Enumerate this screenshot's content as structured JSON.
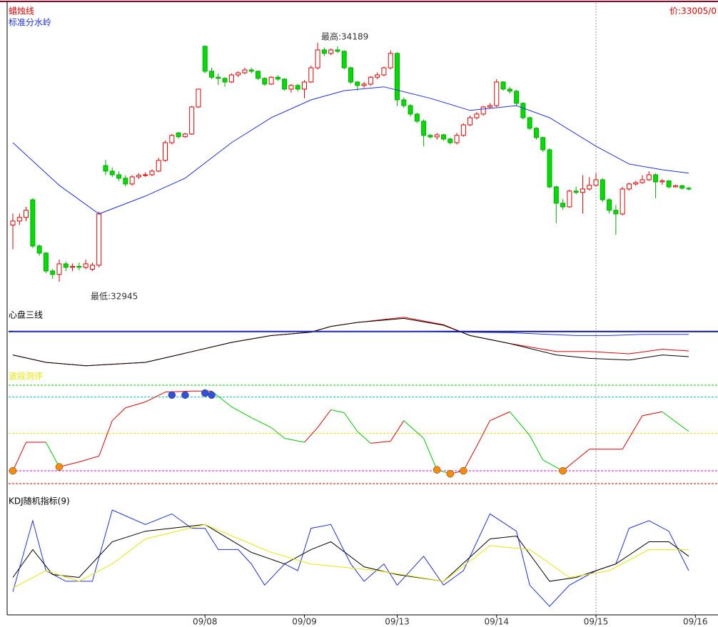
{
  "chart_data": [
    {
      "type": "candlestick",
      "title": "蜡烛线",
      "ylim": [
        32852,
        34412
      ],
      "up_color": "#e00000",
      "down_color": "#00dd00",
      "high_label": "最高:34189",
      "low_label": "最低:32945",
      "price_label": "价:33005/0",
      "cursor_x": 88,
      "candles": [
        [
          33240,
          33300,
          33115,
          33261
        ],
        [
          33261,
          33300,
          33240,
          33280
        ],
        [
          33280,
          33335,
          33260,
          33317
        ],
        [
          33372,
          33380,
          33120,
          33131
        ],
        [
          33131,
          33140,
          33080,
          33094
        ],
        [
          33094,
          33100,
          32990,
          33001
        ],
        [
          33001,
          33010,
          32960,
          32983
        ],
        [
          32983,
          33060,
          32945,
          33038
        ],
        [
          33038,
          33050,
          33000,
          33020
        ],
        [
          33020,
          33040,
          33000,
          33025
        ],
        [
          33025,
          33045,
          33005,
          33020
        ],
        [
          33020,
          33060,
          33010,
          33038
        ],
        [
          33010,
          33045,
          33000,
          33031
        ],
        [
          33031,
          33310,
          33020,
          33298
        ],
        [
          33550,
          33580,
          33500,
          33521
        ],
        [
          33521,
          33540,
          33490,
          33502
        ],
        [
          33502,
          33520,
          33470,
          33484
        ],
        [
          33484,
          33500,
          33440,
          33454
        ],
        [
          33454,
          33500,
          33445,
          33491
        ],
        [
          33491,
          33510,
          33480,
          33499
        ],
        [
          33499,
          33515,
          33490,
          33502
        ],
        [
          33502,
          33530,
          33495,
          33521
        ],
        [
          33521,
          33590,
          33515,
          33577
        ],
        [
          33577,
          33680,
          33570,
          33669
        ],
        [
          33669,
          33715,
          33660,
          33707
        ],
        [
          33720,
          33725,
          33690,
          33700
        ],
        [
          33700,
          33720,
          33695,
          33714
        ],
        [
          33714,
          33860,
          33710,
          33855
        ],
        [
          33855,
          33950,
          33850,
          33948
        ],
        [
          34171,
          34175,
          34030,
          34041
        ],
        [
          34041,
          34060,
          34000,
          34010
        ],
        [
          34010,
          34030,
          33970,
          34004
        ],
        [
          34004,
          34010,
          33960,
          33985
        ],
        [
          33985,
          34030,
          33980,
          34022
        ],
        [
          34022,
          34040,
          34010,
          34033
        ],
        [
          34033,
          34060,
          34025,
          34048
        ],
        [
          34048,
          34060,
          34030,
          34041
        ],
        [
          34041,
          34045,
          33995,
          34004
        ],
        [
          34004,
          34010,
          33965,
          33974
        ],
        [
          33974,
          34015,
          33970,
          34010
        ],
        [
          34010,
          34020,
          33990,
          34000
        ],
        [
          34000,
          34005,
          33940,
          33948
        ],
        [
          33948,
          33975,
          33930,
          33967
        ],
        [
          33967,
          33975,
          33935,
          33948
        ],
        [
          33948,
          33995,
          33900,
          33985
        ],
        [
          33985,
          34070,
          33980,
          34059
        ],
        [
          34059,
          34189,
          34050,
          34152
        ],
        [
          34152,
          34165,
          34120,
          34134
        ],
        [
          34134,
          34160,
          34125,
          34152
        ],
        [
          34152,
          34170,
          34135,
          34145
        ],
        [
          34145,
          34150,
          34050,
          34059
        ],
        [
          34059,
          34065,
          33975,
          33985
        ],
        [
          33985,
          33990,
          33940,
          33967
        ],
        [
          33967,
          33985,
          33955,
          33974
        ],
        [
          33974,
          34015,
          33965,
          34010
        ],
        [
          34010,
          34035,
          34000,
          34022
        ],
        [
          34022,
          34065,
          34015,
          34059
        ],
        [
          34059,
          34150,
          34050,
          34134
        ],
        [
          34134,
          34140,
          33860,
          33892
        ],
        [
          33892,
          33905,
          33850,
          33862
        ],
        [
          33862,
          33870,
          33805,
          33818
        ],
        [
          33818,
          33825,
          33770,
          33781
        ],
        [
          33781,
          33790,
          33650,
          33707
        ],
        [
          33707,
          33715,
          33690,
          33699
        ],
        [
          33699,
          33720,
          33685,
          33710
        ],
        [
          33710,
          33715,
          33680,
          33688
        ],
        [
          33688,
          33695,
          33660,
          33669
        ],
        [
          33669,
          33720,
          33660,
          33707
        ],
        [
          33707,
          33770,
          33700,
          33762
        ],
        [
          33762,
          33810,
          33755,
          33799
        ],
        [
          33799,
          33830,
          33790,
          33818
        ],
        [
          33818,
          33860,
          33810,
          33855
        ],
        [
          33855,
          33875,
          33850,
          33862
        ],
        [
          33862,
          34000,
          33855,
          33985
        ],
        [
          33985,
          33990,
          33940,
          33948
        ],
        [
          33948,
          33960,
          33925,
          33937
        ],
        [
          33937,
          33945,
          33860,
          33874
        ],
        [
          33874,
          33880,
          33790,
          33799
        ],
        [
          33799,
          33805,
          33735,
          33744
        ],
        [
          33744,
          33750,
          33685,
          33696
        ],
        [
          33696,
          33700,
          33620,
          33632
        ],
        [
          33632,
          33640,
          33430,
          33439
        ],
        [
          33439,
          33445,
          33250,
          33354
        ],
        [
          33354,
          33375,
          33320,
          33335
        ],
        [
          33335,
          33425,
          33330,
          33417
        ],
        [
          33417,
          33440,
          33400,
          33410
        ],
        [
          33410,
          33500,
          33300,
          33428
        ],
        [
          33428,
          33490,
          33420,
          33447
        ],
        [
          33447,
          33510,
          33440,
          33476
        ],
        [
          33476,
          33485,
          33360,
          33372
        ],
        [
          33372,
          33380,
          33300,
          33317
        ],
        [
          33317,
          33345,
          33190,
          33298
        ],
        [
          33298,
          33440,
          33290,
          33428
        ],
        [
          33428,
          33460,
          33420,
          33454
        ],
        [
          33454,
          33470,
          33445,
          33461
        ],
        [
          33461,
          33500,
          33455,
          33476
        ],
        [
          33476,
          33520,
          33470,
          33502
        ],
        [
          33502,
          33510,
          33380,
          33465
        ],
        [
          33465,
          33480,
          33450,
          33470
        ],
        [
          33470,
          33475,
          33430,
          33439
        ],
        [
          33439,
          33450,
          33435,
          33445
        ],
        [
          33445,
          33450,
          33425,
          33432
        ],
        [
          33432,
          33440,
          33420,
          33428
        ]
      ],
      "series": [
        {
          "name": "标准分水岭",
          "color": "#2030e0",
          "x": [
            0,
            7,
            13,
            20,
            26,
            33,
            39,
            45,
            50,
            56,
            63,
            69,
            76,
            81,
            88,
            93,
            98,
            102
          ],
          "values": [
            33669,
            33447,
            33298,
            33391,
            33484,
            33669,
            33799,
            33892,
            33940,
            33960,
            33900,
            33837,
            33862,
            33799,
            33651,
            33558,
            33528,
            33510
          ]
        }
      ]
    },
    {
      "type": "line",
      "title": "心盘三线",
      "ylim": [
        0,
        100
      ],
      "levels": [
        {
          "value": 69,
          "color": "#101880"
        }
      ],
      "series": [
        {
          "color": "#e00000",
          "x": [
            0,
            5,
            11,
            20,
            26,
            33,
            39,
            45,
            48,
            52,
            59,
            65,
            69,
            75,
            82,
            87,
            93,
            98,
            102
          ],
          "values": [
            28,
            15,
            9,
            15,
            31,
            50,
            62,
            68,
            78,
            85,
            94,
            81,
            62,
            48,
            34,
            34,
            30,
            38,
            35
          ]
        },
        {
          "color": "#000000",
          "x": [
            0,
            5,
            11,
            20,
            26,
            33,
            39,
            45,
            48,
            52,
            59,
            65,
            69,
            75,
            82,
            87,
            93,
            98,
            102
          ],
          "values": [
            28,
            15,
            9,
            15,
            31,
            50,
            62,
            68,
            78,
            85,
            92,
            80,
            62,
            48,
            28,
            22,
            19,
            28,
            25
          ]
        },
        {
          "color": "#2030e0",
          "x": [
            0,
            20,
            40,
            60,
            75,
            85,
            90,
            95,
            102
          ],
          "values": [
            69,
            69,
            69,
            69,
            67,
            62,
            62,
            64,
            64
          ]
        }
      ]
    },
    {
      "type": "line",
      "title": "波段测评",
      "ylim": [
        0,
        100
      ],
      "up_color": "#e00000",
      "down_color": "#00cc00",
      "levels": [
        {
          "value": 100,
          "color": "#00cc00"
        },
        {
          "value": 88,
          "color": "#00cccc"
        },
        {
          "value": 51,
          "color": "#e0e000"
        },
        {
          "value": 13,
          "color": "#e000e0"
        },
        {
          "value": 0,
          "color": "#e00000"
        }
      ],
      "series": [
        {
          "x": [
            0,
            2,
            5,
            7,
            10,
            13,
            15,
            17,
            20,
            23,
            27,
            30,
            33,
            36,
            39,
            41,
            44,
            46,
            48,
            50,
            52,
            54,
            57,
            59,
            62,
            64,
            66,
            68,
            70,
            72,
            75,
            78,
            80,
            83,
            85,
            87,
            90,
            92,
            95,
            98,
            102
          ],
          "values": [
            13,
            42,
            42,
            17,
            22,
            28,
            64,
            77,
            83,
            93,
            94,
            94,
            78,
            67,
            57,
            46,
            42,
            57,
            75,
            72,
            53,
            41,
            43,
            64,
            46,
            14,
            10,
            13,
            38,
            64,
            73,
            49,
            24,
            13,
            24,
            35,
            35,
            35,
            69,
            73,
            53
          ]
        }
      ],
      "signals": [
        {
          "color": "#3050e0",
          "x": [
            24,
            26,
            29,
            30
          ],
          "values": [
            90,
            90,
            92,
            90
          ]
        },
        {
          "color": "#ff8c00",
          "x": [
            0,
            7,
            64,
            66,
            68,
            83
          ],
          "values": [
            13,
            17,
            14,
            10,
            13,
            13
          ]
        }
      ]
    },
    {
      "type": "line",
      "title": "KDJ随机指标(9)",
      "ylim": [
        0,
        100
      ],
      "xticks": [
        {
          "value": 29,
          "label": "09/08"
        },
        {
          "value": 44,
          "label": "09/09"
        },
        {
          "value": 58,
          "label": "09/13"
        },
        {
          "value": 73,
          "label": "09/14"
        },
        {
          "value": 88,
          "label": "09/15"
        },
        {
          "value": 103,
          "label": "09/16"
        }
      ],
      "series": [
        {
          "color": "#2030e0",
          "x": [
            0,
            3,
            5,
            8,
            12,
            15,
            20,
            24,
            27,
            29,
            31,
            34,
            36,
            38,
            41,
            43,
            45,
            48,
            51,
            53,
            56,
            58,
            62,
            65,
            68,
            72,
            76,
            78,
            81,
            84,
            88,
            91,
            93,
            96,
            99,
            102
          ],
          "values": [
            15,
            89,
            37,
            26,
            26,
            100,
            85,
            96,
            81,
            81,
            59,
            59,
            44,
            22,
            44,
            37,
            81,
            85,
            44,
            26,
            44,
            22,
            52,
            22,
            37,
            96,
            78,
            22,
            0,
            22,
            37,
            44,
            81,
            89,
            78,
            37
          ]
        },
        {
          "color": "#000000",
          "x": [
            0,
            3,
            6,
            10,
            15,
            20,
            29,
            36,
            41,
            45,
            48,
            53,
            58,
            65,
            72,
            76,
            81,
            85,
            91,
            96,
            99,
            102
          ],
          "values": [
            30,
            59,
            33,
            30,
            67,
            78,
            85,
            56,
            44,
            59,
            67,
            41,
            33,
            26,
            70,
            73,
            26,
            30,
            44,
            67,
            67,
            52
          ]
        },
        {
          "color": "#e8e800",
          "x": [
            0,
            5,
            10,
            15,
            20,
            29,
            39,
            45,
            55,
            65,
            72,
            78,
            84,
            90,
            96,
            102
          ],
          "values": [
            19,
            37,
            26,
            44,
            70,
            85,
            56,
            44,
            37,
            26,
            63,
            59,
            30,
            37,
            59,
            59
          ]
        }
      ]
    }
  ]
}
